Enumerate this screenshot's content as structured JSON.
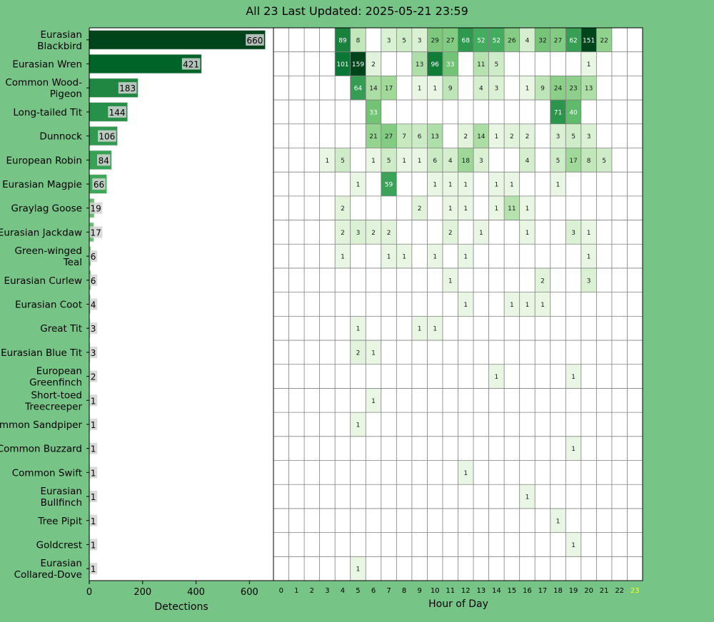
{
  "colors": {
    "background": "#77c487",
    "grid": "#808080",
    "text": "#000000",
    "current_hour": "#ffff00",
    "bar_palette": [
      "#f7fcf5",
      "#e5f5e0",
      "#c7e9c0",
      "#a1d99b",
      "#74c476",
      "#41ab5d",
      "#238b45",
      "#006d2c",
      "#00441b"
    ]
  },
  "chart_data": [
    {
      "type": "bar",
      "orientation": "horizontal",
      "title": "All 23 Last Updated: 2025-05-21 23:59",
      "xlabel": "Detections",
      "ylabel": "",
      "xlim": [
        0,
        690
      ],
      "xticks": [
        0,
        200,
        400,
        600
      ],
      "categories": [
        "Eurasian Blackbird",
        "Eurasian Wren",
        "Common Wood-Pigeon",
        "Long-tailed Tit",
        "Dunnock",
        "European Robin",
        "Eurasian Magpie",
        "Graylag Goose",
        "Eurasian Jackdaw",
        "Green-winged Teal",
        "Eurasian Curlew",
        "Eurasian Coot",
        "Great Tit",
        "Eurasian Blue Tit",
        "European Greenfinch",
        "Short-toed Treecreeper",
        "Common Sandpiper",
        "Common Buzzard",
        "Common Swift",
        "Eurasian Bullfinch",
        "Tree Pipit",
        "Goldcrest",
        "Eurasian Collared-Dove"
      ],
      "category_lines": [
        [
          "Eurasian",
          "Blackbird"
        ],
        [
          "Eurasian Wren"
        ],
        [
          "Common Wood-",
          "Pigeon"
        ],
        [
          "Long-tailed Tit"
        ],
        [
          "Dunnock"
        ],
        [
          "European Robin"
        ],
        [
          "Eurasian Magpie"
        ],
        [
          "Graylag Goose"
        ],
        [
          "Eurasian Jackdaw"
        ],
        [
          "Green-winged",
          "Teal"
        ],
        [
          "Eurasian Curlew"
        ],
        [
          "Eurasian Coot"
        ],
        [
          "Great Tit"
        ],
        [
          "Eurasian Blue Tit"
        ],
        [
          "European",
          "Greenfinch"
        ],
        [
          "Short-toed",
          "Treecreeper"
        ],
        [
          "Common Sandpiper"
        ],
        [
          "Common Buzzard"
        ],
        [
          "Common Swift"
        ],
        [
          "Eurasian",
          "Bullfinch"
        ],
        [
          "Tree Pipit"
        ],
        [
          "Goldcrest"
        ],
        [
          "Eurasian",
          "Collared-Dove"
        ]
      ],
      "values": [
        660,
        421,
        183,
        144,
        106,
        84,
        66,
        19,
        17,
        6,
        6,
        4,
        3,
        3,
        2,
        1,
        1,
        1,
        1,
        1,
        1,
        1,
        1
      ]
    },
    {
      "type": "heatmap",
      "xlabel": "Hour of Day",
      "x": [
        0,
        1,
        2,
        3,
        4,
        5,
        6,
        7,
        8,
        9,
        10,
        11,
        12,
        13,
        14,
        15,
        16,
        17,
        18,
        19,
        20,
        21,
        22,
        23
      ],
      "highlighted_hour": 23,
      "color_max": 151,
      "rows": [
        [
          0,
          0,
          0,
          0,
          89,
          8,
          0,
          3,
          5,
          3,
          29,
          27,
          68,
          52,
          52,
          26,
          4,
          32,
          27,
          62,
          151,
          22,
          0,
          0
        ],
        [
          0,
          0,
          0,
          0,
          101,
          159,
          2,
          0,
          0,
          13,
          96,
          33,
          0,
          11,
          5,
          0,
          0,
          0,
          0,
          0,
          1,
          0,
          0,
          0
        ],
        [
          0,
          0,
          0,
          0,
          0,
          64,
          14,
          17,
          0,
          1,
          1,
          9,
          0,
          4,
          3,
          0,
          1,
          9,
          24,
          23,
          13,
          0,
          0,
          0
        ],
        [
          0,
          0,
          0,
          0,
          0,
          0,
          33,
          0,
          0,
          0,
          0,
          0,
          0,
          0,
          0,
          0,
          0,
          0,
          71,
          40,
          0,
          0,
          0,
          0
        ],
        [
          0,
          0,
          0,
          0,
          0,
          0,
          21,
          27,
          7,
          6,
          13,
          0,
          2,
          14,
          1,
          2,
          2,
          0,
          3,
          5,
          3,
          0,
          0,
          0
        ],
        [
          0,
          0,
          0,
          1,
          5,
          0,
          1,
          5,
          1,
          1,
          6,
          4,
          18,
          3,
          0,
          0,
          4,
          0,
          5,
          17,
          8,
          5,
          0,
          0
        ],
        [
          0,
          0,
          0,
          0,
          0,
          1,
          0,
          59,
          0,
          0,
          1,
          1,
          1,
          0,
          1,
          1,
          0,
          0,
          1,
          0,
          0,
          0,
          0,
          0
        ],
        [
          0,
          0,
          0,
          0,
          2,
          0,
          0,
          0,
          0,
          2,
          0,
          1,
          1,
          0,
          1,
          11,
          1,
          0,
          0,
          0,
          0,
          0,
          0,
          0
        ],
        [
          0,
          0,
          0,
          0,
          2,
          3,
          2,
          2,
          0,
          0,
          0,
          2,
          0,
          1,
          0,
          0,
          1,
          0,
          0,
          3,
          1,
          0,
          0,
          0
        ],
        [
          0,
          0,
          0,
          0,
          1,
          0,
          0,
          1,
          1,
          0,
          1,
          0,
          1,
          0,
          0,
          0,
          0,
          0,
          0,
          0,
          1,
          0,
          0,
          0
        ],
        [
          0,
          0,
          0,
          0,
          0,
          0,
          0,
          0,
          0,
          0,
          0,
          1,
          0,
          0,
          0,
          0,
          0,
          2,
          0,
          0,
          3,
          0,
          0,
          0
        ],
        [
          0,
          0,
          0,
          0,
          0,
          0,
          0,
          0,
          0,
          0,
          0,
          0,
          1,
          0,
          0,
          1,
          1,
          1,
          0,
          0,
          0,
          0,
          0,
          0
        ],
        [
          0,
          0,
          0,
          0,
          0,
          1,
          0,
          0,
          0,
          1,
          1,
          0,
          0,
          0,
          0,
          0,
          0,
          0,
          0,
          0,
          0,
          0,
          0,
          0
        ],
        [
          0,
          0,
          0,
          0,
          0,
          2,
          1,
          0,
          0,
          0,
          0,
          0,
          0,
          0,
          0,
          0,
          0,
          0,
          0,
          0,
          0,
          0,
          0,
          0
        ],
        [
          0,
          0,
          0,
          0,
          0,
          0,
          0,
          0,
          0,
          0,
          0,
          0,
          0,
          0,
          1,
          0,
          0,
          0,
          0,
          1,
          0,
          0,
          0,
          0
        ],
        [
          0,
          0,
          0,
          0,
          0,
          0,
          1,
          0,
          0,
          0,
          0,
          0,
          0,
          0,
          0,
          0,
          0,
          0,
          0,
          0,
          0,
          0,
          0,
          0
        ],
        [
          0,
          0,
          0,
          0,
          0,
          1,
          0,
          0,
          0,
          0,
          0,
          0,
          0,
          0,
          0,
          0,
          0,
          0,
          0,
          0,
          0,
          0,
          0,
          0
        ],
        [
          0,
          0,
          0,
          0,
          0,
          0,
          0,
          0,
          0,
          0,
          0,
          0,
          0,
          0,
          0,
          0,
          0,
          0,
          0,
          1,
          0,
          0,
          0,
          0
        ],
        [
          0,
          0,
          0,
          0,
          0,
          0,
          0,
          0,
          0,
          0,
          0,
          0,
          1,
          0,
          0,
          0,
          0,
          0,
          0,
          0,
          0,
          0,
          0,
          0
        ],
        [
          0,
          0,
          0,
          0,
          0,
          0,
          0,
          0,
          0,
          0,
          0,
          0,
          0,
          0,
          0,
          0,
          1,
          0,
          0,
          0,
          0,
          0,
          0,
          0
        ],
        [
          0,
          0,
          0,
          0,
          0,
          0,
          0,
          0,
          0,
          0,
          0,
          0,
          0,
          0,
          0,
          0,
          0,
          0,
          1,
          0,
          0,
          0,
          0,
          0
        ],
        [
          0,
          0,
          0,
          0,
          0,
          0,
          0,
          0,
          0,
          0,
          0,
          0,
          0,
          0,
          0,
          0,
          0,
          0,
          0,
          1,
          0,
          0,
          0,
          0
        ],
        [
          0,
          0,
          0,
          0,
          0,
          1,
          0,
          0,
          0,
          0,
          0,
          0,
          0,
          0,
          0,
          0,
          0,
          0,
          0,
          0,
          0,
          0,
          0,
          0
        ]
      ]
    }
  ]
}
